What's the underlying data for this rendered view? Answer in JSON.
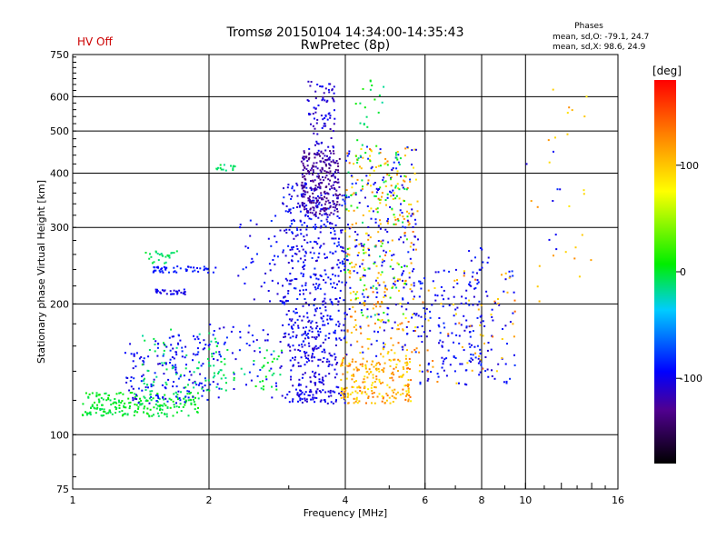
{
  "status_label": "HV Off",
  "phases": {
    "title": "Phases",
    "line_o": "mean, sd,O: -79.1, 24.7",
    "line_x": "mean, sd,X:  98.6, 24.9"
  },
  "colorbar": {
    "unit": "[deg]",
    "ticks": [
      {
        "value": 100,
        "label": "100"
      },
      {
        "value": 0,
        "label": "0"
      },
      {
        "value": -100,
        "label": "-100"
      }
    ],
    "range": [
      -180,
      180
    ]
  },
  "chart_data": {
    "type": "scatter",
    "title": "Tromsø 20150104 14:34:00-14:35:43",
    "subtitle": "RwPretec (8p)",
    "xlabel": "Frequency [MHz]",
    "ylabel": "Stationary phase Virtual Height [km]",
    "xscale": "log",
    "yscale": "log",
    "xlim": [
      1,
      16
    ],
    "ylim": [
      75,
      750
    ],
    "xticks": [
      {
        "v": 1,
        "l": "1"
      },
      {
        "v": 2,
        "l": "2"
      },
      {
        "v": 4,
        "l": "4"
      },
      {
        "v": 6,
        "l": "6"
      },
      {
        "v": 8,
        "l": "8"
      },
      {
        "v": 10,
        "l": "10"
      },
      {
        "v": 16,
        "l": "16"
      }
    ],
    "yticks": [
      {
        "v": 75,
        "l": "75"
      },
      {
        "v": 100,
        "l": "100"
      },
      {
        "v": 200,
        "l": "200"
      },
      {
        "v": 300,
        "l": "300"
      },
      {
        "v": 400,
        "l": "400"
      },
      {
        "v": 500,
        "l": "500"
      },
      {
        "v": 600,
        "l": "600"
      },
      {
        "v": 750,
        "l": "750"
      }
    ],
    "grid": true,
    "color_variable": "phase [deg]",
    "clusters": [
      {
        "f": [
          1.05,
          1.9
        ],
        "h": [
          110,
          125
        ],
        "phase": [
          -10,
          10
        ],
        "n": 220
      },
      {
        "f": [
          1.3,
          2.0
        ],
        "h": [
          118,
          170
        ],
        "phase": [
          -110,
          -80
        ],
        "n": 160
      },
      {
        "f": [
          1.4,
          2.2
        ],
        "h": [
          125,
          175
        ],
        "phase": [
          -20,
          0
        ],
        "n": 80
      },
      {
        "f": [
          1.5,
          2.1
        ],
        "h": [
          236,
          244
        ],
        "phase": [
          -100,
          -80
        ],
        "n": 50
      },
      {
        "f": [
          1.5,
          1.8
        ],
        "h": [
          210,
          216
        ],
        "phase": [
          -110,
          -90
        ],
        "n": 30
      },
      {
        "f": [
          1.45,
          1.7
        ],
        "h": [
          245,
          265
        ],
        "phase": [
          -20,
          0
        ],
        "n": 25
      },
      {
        "f": [
          2.0,
          2.4
        ],
        "h": [
          405,
          420
        ],
        "phase": [
          -20,
          0
        ],
        "n": 15
      },
      {
        "f": [
          2.0,
          2.9
        ],
        "h": [
          120,
          180
        ],
        "phase": [
          -110,
          -80
        ],
        "n": 60
      },
      {
        "f": [
          2.0,
          2.9
        ],
        "h": [
          125,
          160
        ],
        "phase": [
          -20,
          10
        ],
        "n": 40
      },
      {
        "f": [
          2.3,
          3.0
        ],
        "h": [
          200,
          320
        ],
        "phase": [
          -110,
          -80
        ],
        "n": 40
      },
      {
        "f": [
          2.9,
          4.0
        ],
        "h": [
          160,
          380
        ],
        "phase": [
          -115,
          -80
        ],
        "n": 450
      },
      {
        "f": [
          3.2,
          3.9
        ],
        "h": [
          320,
          450
        ],
        "phase": [
          -140,
          -110
        ],
        "n": 260
      },
      {
        "f": [
          3.3,
          3.8
        ],
        "h": [
          450,
          650
        ],
        "phase": [
          -120,
          -90
        ],
        "n": 80
      },
      {
        "f": [
          3.0,
          3.9
        ],
        "h": [
          125,
          160
        ],
        "phase": [
          -115,
          -90
        ],
        "n": 120
      },
      {
        "f": [
          2.9,
          4.0
        ],
        "h": [
          118,
          126
        ],
        "phase": [
          -110,
          -90
        ],
        "n": 60
      },
      {
        "f": [
          3.9,
          5.6
        ],
        "h": [
          118,
          150
        ],
        "phase": [
          80,
          140
        ],
        "n": 220
      },
      {
        "f": [
          4.0,
          5.8
        ],
        "h": [
          150,
          460
        ],
        "phase": [
          80,
          140
        ],
        "n": 250
      },
      {
        "f": [
          4.0,
          5.8
        ],
        "h": [
          150,
          460
        ],
        "phase": [
          -110,
          -80
        ],
        "n": 200
      },
      {
        "f": [
          4.0,
          5.5
        ],
        "h": [
          180,
          450
        ],
        "phase": [
          -20,
          30
        ],
        "n": 90
      },
      {
        "f": [
          4.2,
          4.9
        ],
        "h": [
          420,
          660
        ],
        "phase": [
          -20,
          20
        ],
        "n": 25
      },
      {
        "f": [
          5.8,
          8.0
        ],
        "h": [
          130,
          240
        ],
        "phase": [
          -110,
          -80
        ],
        "n": 140
      },
      {
        "f": [
          5.8,
          8.0
        ],
        "h": [
          130,
          240
        ],
        "phase": [
          90,
          140
        ],
        "n": 30
      },
      {
        "f": [
          7.5,
          9.5
        ],
        "h": [
          130,
          270
        ],
        "phase": [
          -110,
          -80
        ],
        "n": 70
      },
      {
        "f": [
          7.5,
          9.5
        ],
        "h": [
          140,
          240
        ],
        "phase": [
          90,
          140
        ],
        "n": 25
      },
      {
        "f": [
          10,
          14
        ],
        "h": [
          200,
          640
        ],
        "phase": [
          80,
          130
        ],
        "n": 25
      },
      {
        "f": [
          10,
          14
        ],
        "h": [
          250,
          560
        ],
        "phase": [
          -110,
          -80
        ],
        "n": 8
      }
    ]
  }
}
